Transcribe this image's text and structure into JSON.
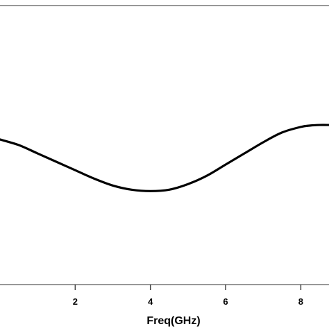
{
  "chart_data": {
    "type": "line",
    "title": "",
    "xlabel": "Freq(GHz)",
    "ylabel": "",
    "xlim": [
      0,
      8.75
    ],
    "ylim": [
      0,
      1
    ],
    "grid": false,
    "x_ticks": [
      2,
      4,
      6,
      8
    ],
    "x_tick_labels": [
      "2",
      "4",
      "6",
      "8"
    ],
    "series": [
      {
        "color": "#000000",
        "x": [
          0,
          0.5,
          1,
          1.5,
          2,
          2.5,
          3,
          3.5,
          4,
          4.5,
          5,
          5.5,
          6,
          6.5,
          7,
          7.5,
          8,
          8.25,
          8.5,
          8.75
        ],
        "y": [
          0.52,
          0.5,
          0.47,
          0.44,
          0.41,
          0.38,
          0.355,
          0.34,
          0.335,
          0.34,
          0.36,
          0.39,
          0.43,
          0.47,
          0.51,
          0.545,
          0.565,
          0.57,
          0.572,
          0.572
        ]
      }
    ]
  }
}
